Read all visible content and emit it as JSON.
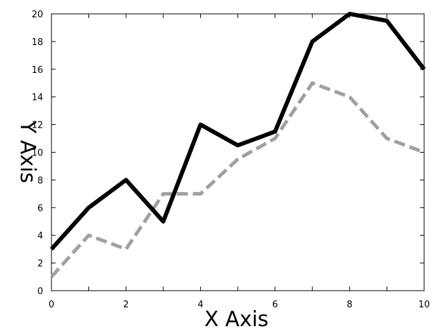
{
  "chart_data": {
    "type": "line",
    "title": "",
    "xlabel": "X Axis",
    "ylabel": "Y Axis",
    "xlim": [
      0,
      10
    ],
    "ylim": [
      0,
      20
    ],
    "x_ticks": [
      "0",
      "2",
      "4",
      "6",
      "8",
      "10"
    ],
    "y_ticks": [
      "0",
      "2",
      "4",
      "6",
      "8",
      "10",
      "12",
      "14",
      "16",
      "18",
      "20"
    ],
    "grid": false,
    "legend": "none",
    "series": [
      {
        "style": "solid",
        "color": "#000000",
        "points": [
          [
            0,
            3
          ],
          [
            1,
            6
          ],
          [
            2,
            8
          ],
          [
            3,
            5
          ],
          [
            4,
            12
          ],
          [
            5,
            10.5
          ],
          [
            6,
            11.5
          ],
          [
            7,
            18
          ],
          [
            8,
            20
          ],
          [
            9,
            19.5
          ],
          [
            10,
            16
          ]
        ]
      },
      {
        "style": "dashed",
        "color": "#a0a0a0",
        "points": [
          [
            0,
            1
          ],
          [
            1,
            4
          ],
          [
            2,
            3
          ],
          [
            3,
            7
          ],
          [
            4,
            7
          ],
          [
            5,
            9.5
          ],
          [
            6,
            11
          ],
          [
            7,
            15
          ],
          [
            8,
            14
          ],
          [
            9,
            11
          ],
          [
            10,
            10
          ]
        ]
      }
    ]
  }
}
